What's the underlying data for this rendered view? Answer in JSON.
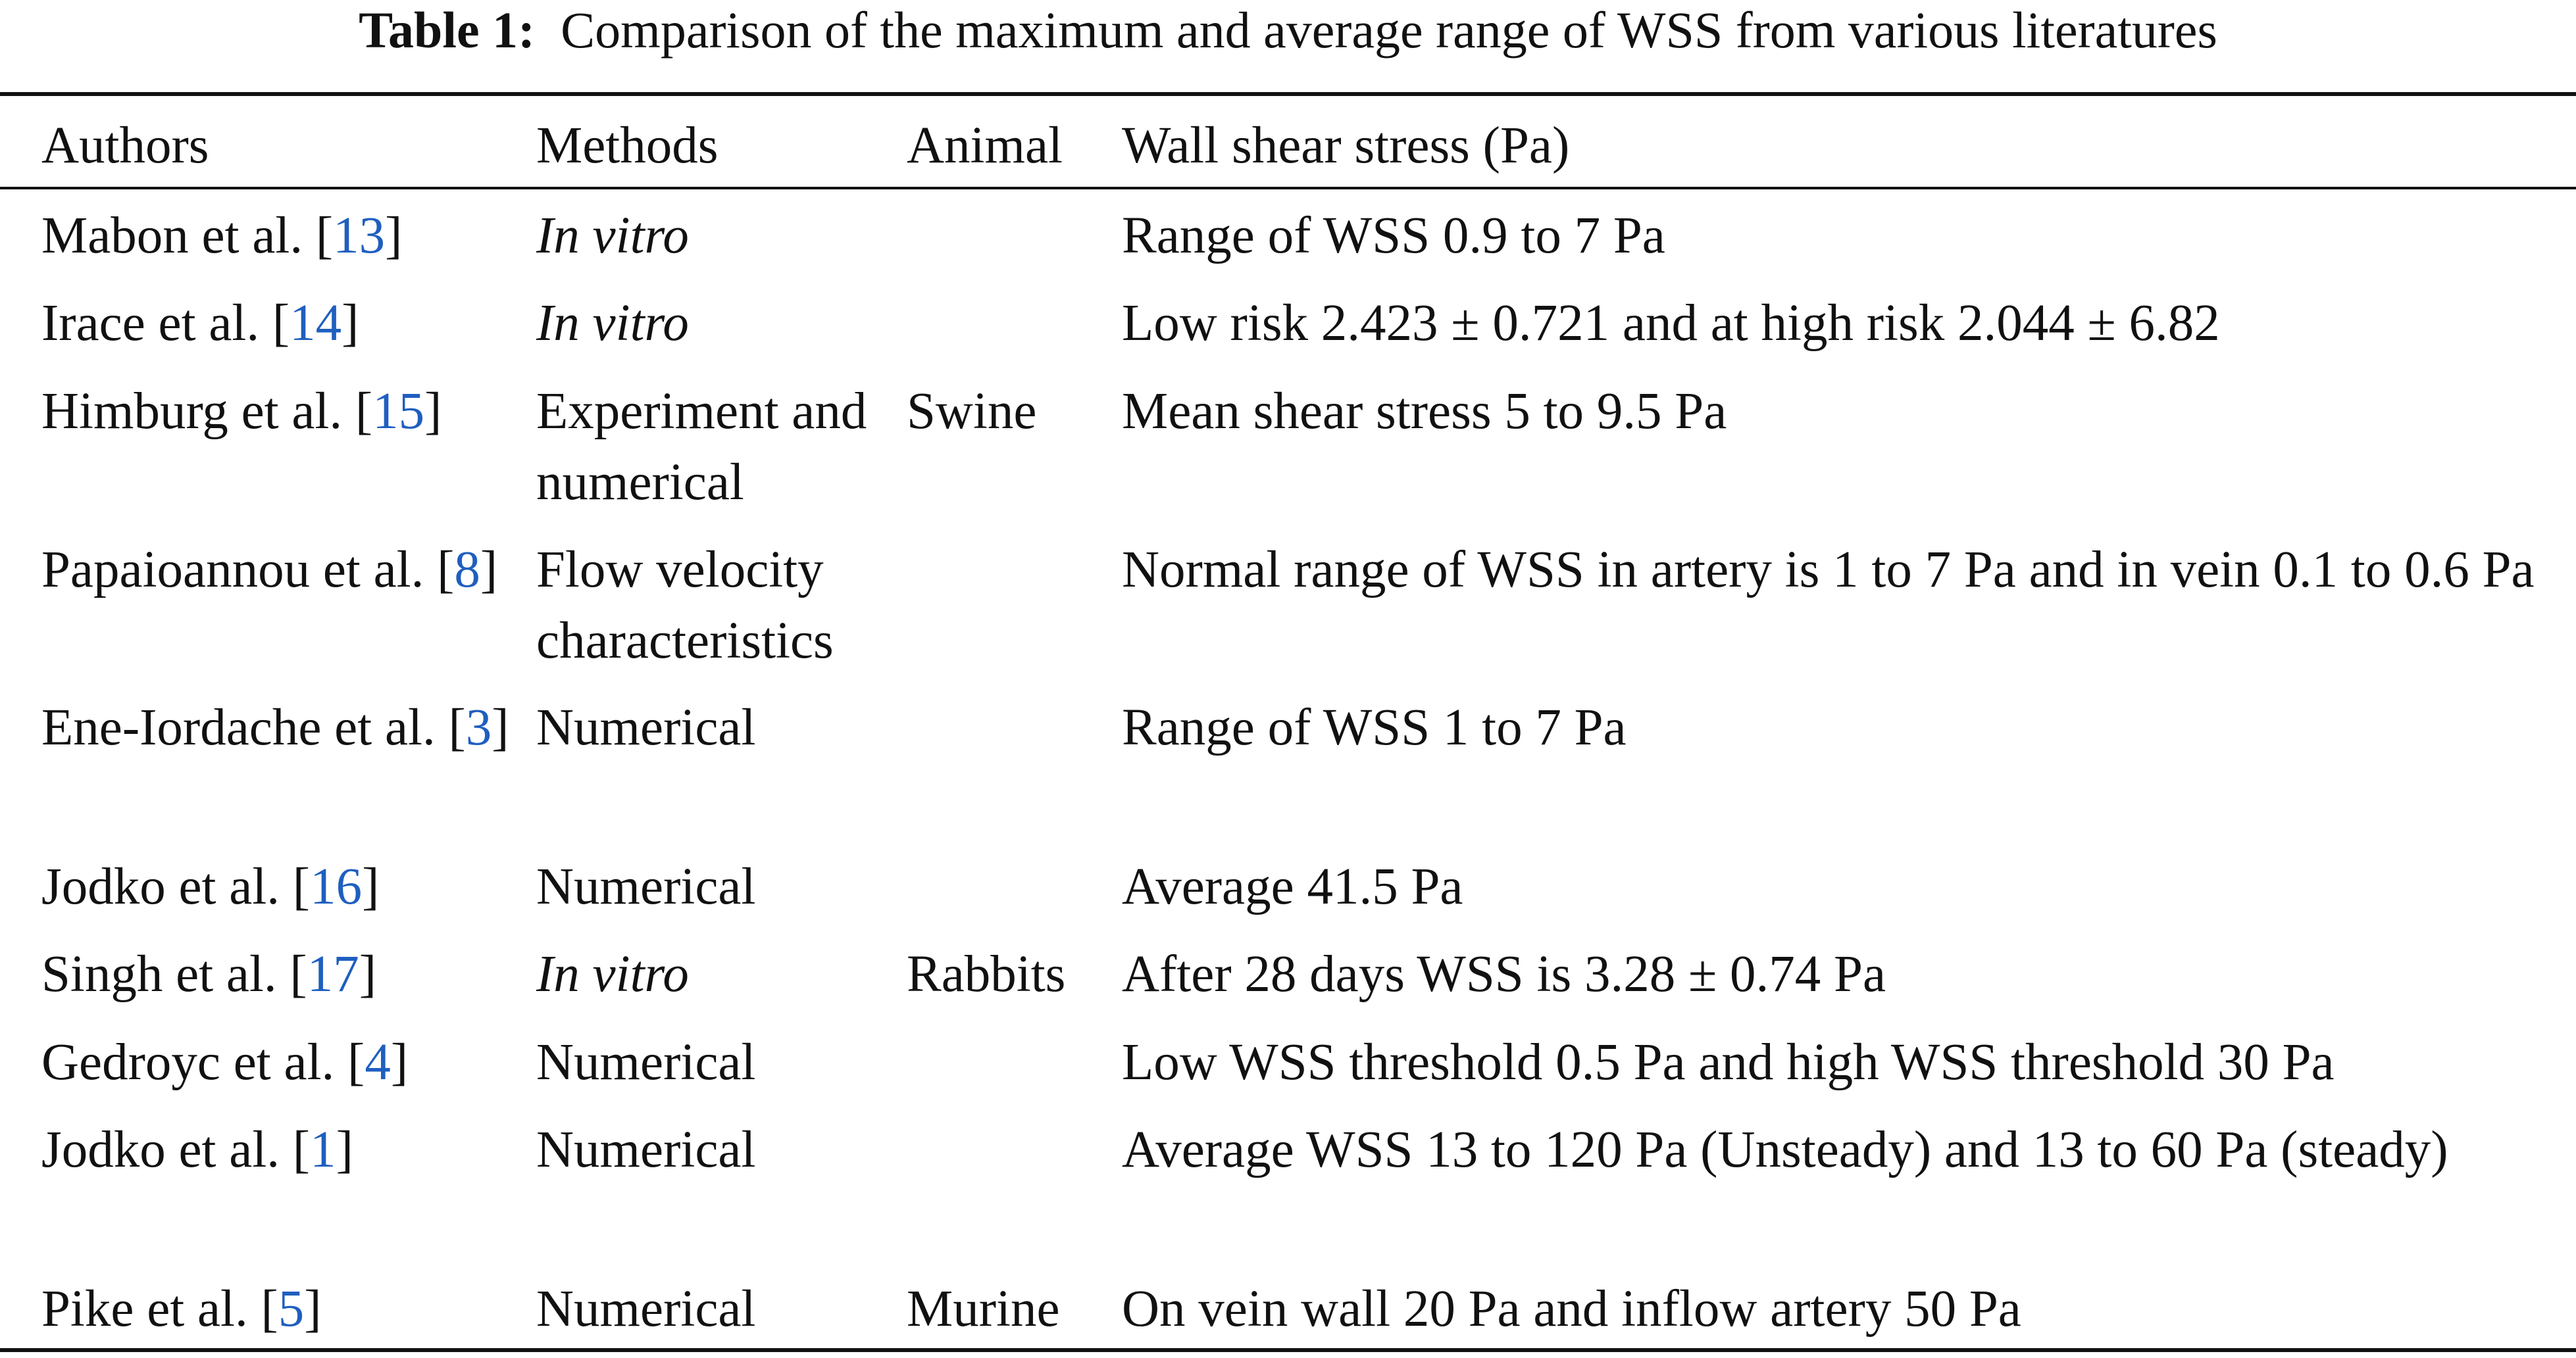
{
  "caption": {
    "label": "Table 1:",
    "text": "Comparison of the maximum and average range of WSS from various literatures"
  },
  "headers": {
    "authors": "Authors",
    "methods": "Methods",
    "animal": "Animal",
    "wss": "Wall shear stress (Pa)"
  },
  "rows": [
    {
      "author": "Mabon et al.",
      "ref": "13",
      "author_tail": "",
      "method": "In vitro",
      "method_italic": true,
      "animal": "",
      "wss": "Range of WSS 0.9 to 7 Pa"
    },
    {
      "author": "Irace et al.",
      "ref": "14",
      "author_tail": "",
      "method": "In vitro",
      "method_italic": true,
      "animal": "",
      "wss": "Low risk 2.423 ± 0.721 and at high risk 2.044 ± 6.82"
    },
    {
      "author": "Himburg et al.",
      "ref": "15",
      "author_tail": "",
      "method": "Experiment and numerical",
      "method_italic": false,
      "animal": "Swine",
      "wss": "Mean shear stress 5 to 9.5 Pa"
    },
    {
      "author": "Papaioannou et al.",
      "ref": "8",
      "author_tail": "",
      "method": "Flow velocity characteristics",
      "method_italic": false,
      "animal": "",
      "wss": "Normal range of WSS in artery is 1 to 7 Pa and in vein 0.1 to 0.6 Pa"
    },
    {
      "author": "Ene-Iordache et al.",
      "ref": "3",
      "author_tail": "",
      "method": "Numerical",
      "method_italic": false,
      "animal": "",
      "wss": "Range of WSS 1 to 7 Pa"
    },
    {
      "author": "Jodko et al.",
      "ref": "16",
      "author_tail": "",
      "method": "Numerical",
      "method_italic": false,
      "animal": "",
      "wss": "Average 41.5 Pa"
    },
    {
      "author": "Singh et al.",
      "ref": "17",
      "author_tail": "",
      "method": "In vitro",
      "method_italic": true,
      "animal": "Rabbits",
      "wss": "After 28 days WSS is 3.28 ± 0.74 Pa"
    },
    {
      "author": "Gedroyc et al.",
      "ref": "4",
      "author_tail": "",
      "method": "Numerical",
      "method_italic": false,
      "animal": "",
      "wss": "Low WSS threshold 0.5 Pa and high WSS threshold 30 Pa"
    },
    {
      "author": "Jodko et al.",
      "ref": "1",
      "author_tail": "",
      "method": "Numerical",
      "method_italic": false,
      "animal": "",
      "wss": "Average WSS 13 to 120 Pa (Unsteady) and 13 to 60 Pa (steady)"
    },
    {
      "author": "Pike et al.",
      "ref": "5",
      "author_tail": "",
      "method": "Numerical",
      "method_italic": false,
      "animal": "Murine",
      "wss": "On vein wall 20 Pa and inflow artery 50 Pa"
    }
  ]
}
